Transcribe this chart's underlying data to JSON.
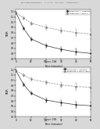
{
  "fig_width": 1.28,
  "fig_height": 1.65,
  "dpi": 100,
  "page_bg": "#d8d8d8",
  "chart_bg": "#ffffff",
  "header_text": "Patent Application Publication    Jul. 2, 2009   Sheet 4 of 13    US 2009/0169542 A1",
  "charts": [
    {
      "title": "Figure 19A",
      "xlabel": "Time (minutes)",
      "ylabel": "TEER",
      "xlim": [
        0,
        50
      ],
      "ylim": [
        0.3,
        1.25
      ],
      "xticks": [
        0,
        10,
        20,
        30,
        40,
        50
      ],
      "yticks": [
        0.3,
        0.4,
        0.5,
        0.6,
        0.7,
        0.8,
        0.9,
        1.0,
        1.1,
        1.2
      ],
      "series": [
        {
          "label": "experiment 1 (inhibitor)",
          "color": "#333333",
          "linestyle": "-",
          "marker": "o",
          "x": [
            0,
            5,
            10,
            20,
            30,
            40,
            50
          ],
          "y": [
            1.18,
            0.88,
            0.68,
            0.55,
            0.48,
            0.43,
            0.4
          ],
          "yerr": [
            0.02,
            0.03,
            0.03,
            0.04,
            0.05,
            0.06,
            0.07
          ]
        },
        {
          "label": "experiment 2 (control)",
          "color": "#888888",
          "linestyle": "--",
          "marker": "s",
          "x": [
            0,
            5,
            10,
            20,
            30,
            40,
            50
          ],
          "y": [
            1.18,
            1.08,
            0.98,
            0.9,
            0.84,
            0.8,
            0.77
          ],
          "yerr": [
            0.02,
            0.03,
            0.03,
            0.04,
            0.05,
            0.07,
            0.09
          ]
        }
      ]
    },
    {
      "title": "Figure 19B",
      "xlabel": "Time (minutes)",
      "ylabel": "TEER",
      "xlim": [
        0,
        50
      ],
      "ylim": [
        0.3,
        1.25
      ],
      "xticks": [
        0,
        10,
        20,
        30,
        40,
        50
      ],
      "yticks": [
        0.3,
        0.4,
        0.5,
        0.6,
        0.7,
        0.8,
        0.9,
        1.0,
        1.1,
        1.2
      ],
      "series": [
        {
          "label": "experiment 1 (activator)",
          "color": "#333333",
          "linestyle": "-",
          "marker": "o",
          "x": [
            0,
            5,
            10,
            20,
            30,
            40,
            50
          ],
          "y": [
            1.18,
            0.92,
            0.75,
            0.62,
            0.57,
            0.53,
            0.51
          ],
          "yerr": [
            0.02,
            0.03,
            0.03,
            0.04,
            0.05,
            0.06,
            0.07
          ]
        },
        {
          "label": "experiment 2 control (PBS)",
          "color": "#888888",
          "linestyle": "--",
          "marker": "s",
          "x": [
            0,
            5,
            10,
            20,
            30,
            40,
            50
          ],
          "y": [
            1.18,
            1.1,
            1.02,
            0.96,
            0.91,
            0.88,
            0.86
          ],
          "yerr": [
            0.02,
            0.03,
            0.03,
            0.04,
            0.05,
            0.07,
            0.09
          ]
        }
      ]
    }
  ]
}
